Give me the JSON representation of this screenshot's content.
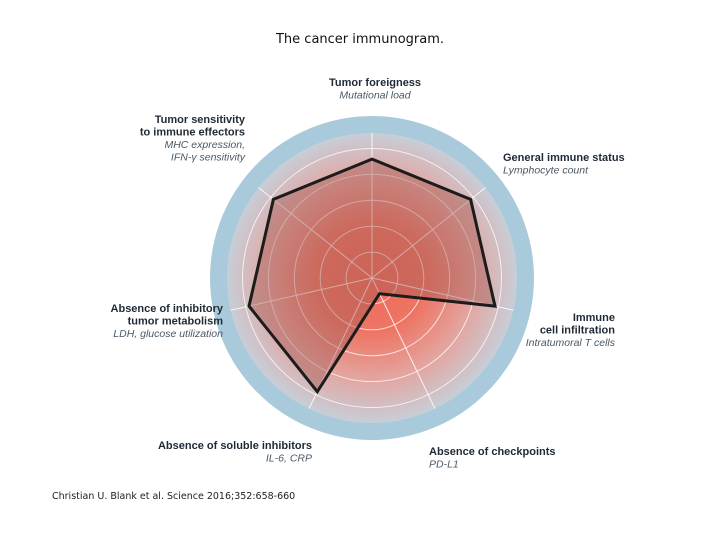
{
  "title": "The cancer immunogram.",
  "citation": "Christian U. Blank et al. Science 2016;352:658-660",
  "colors": {
    "outer_ring": "#a9cadb",
    "center": "#f06a5a",
    "edge": "#c4ccd6",
    "polygon_stroke": "#1c1c1c",
    "polygon_fill": "#a55a54"
  },
  "axes": [
    {
      "name_lines": [
        "Tumor foreigness"
      ],
      "sub_lines": [
        "Mutational load"
      ],
      "value": 0.82
    },
    {
      "name_lines": [
        "General immune status"
      ],
      "sub_lines": [
        "Lymphocyte count"
      ],
      "value": 0.87
    },
    {
      "name_lines": [
        "Immune",
        "cell infiltration"
      ],
      "sub_lines": [
        "Intratumoral T cells"
      ],
      "value": 0.87
    },
    {
      "name_lines": [
        "Absence of checkpoints"
      ],
      "sub_lines": [
        "PD-L1"
      ],
      "value": 0.12
    },
    {
      "name_lines": [
        "Absence of soluble inhibitors"
      ],
      "sub_lines": [
        "IL-6, CRP"
      ],
      "value": 0.87
    },
    {
      "name_lines": [
        "Absence of inhibitory",
        "tumor metabolism"
      ],
      "sub_lines": [
        "LDH, glucose utilization"
      ],
      "value": 0.87
    },
    {
      "name_lines": [
        "Tumor sensitivity",
        "to immune effectors"
      ],
      "sub_lines": [
        "MHC expression,",
        "IFN-γ sensitivity"
      ],
      "value": 0.87
    }
  ]
}
